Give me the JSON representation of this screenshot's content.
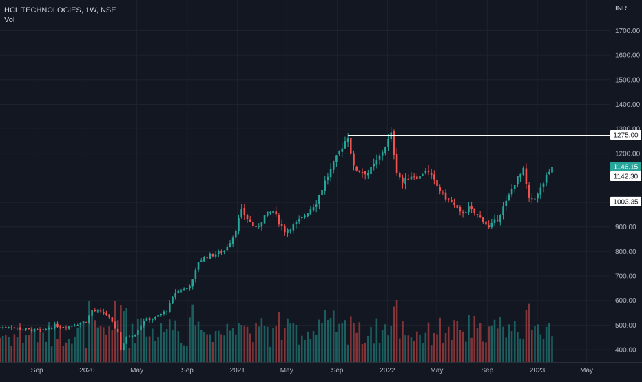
{
  "header": {
    "symbol_line": "HCL TECHNOLOGIES, 1W, NSE",
    "volume_label": "Vol"
  },
  "chart_data": {
    "type": "candlestick",
    "title": "HCL TECHNOLOGIES, 1W, NSE",
    "currency_label": "INR",
    "ylim": [
      380,
      1800
    ],
    "y_ticks": [
      {
        "value": 400,
        "label": "400.00"
      },
      {
        "value": 500,
        "label": "500.00"
      },
      {
        "value": 600,
        "label": "600.00"
      },
      {
        "value": 700,
        "label": "700.00"
      },
      {
        "value": 800,
        "label": "800.00"
      },
      {
        "value": 900,
        "label": "900.00"
      },
      {
        "value": 1000,
        "label": "1000.00"
      },
      {
        "value": 1100,
        "label": "1100.00"
      },
      {
        "value": 1200,
        "label": "1200.00"
      },
      {
        "value": 1300,
        "label": "1300.00"
      },
      {
        "value": 1400,
        "label": "1400.00"
      },
      {
        "value": 1500,
        "label": "1500.00"
      },
      {
        "value": 1600,
        "label": "1600.00"
      },
      {
        "value": 1700,
        "label": "1700.00"
      }
    ],
    "x_ticks": [
      {
        "label": "Sep",
        "date": "2019-09-01"
      },
      {
        "label": "2020",
        "date": "2020-01-01"
      },
      {
        "label": "May",
        "date": "2020-05-01"
      },
      {
        "label": "Sep",
        "date": "2020-09-01"
      },
      {
        "label": "2021",
        "date": "2021-01-01"
      },
      {
        "label": "May",
        "date": "2021-05-01"
      },
      {
        "label": "Sep",
        "date": "2021-09-01"
      },
      {
        "label": "2022",
        "date": "2022-01-01"
      },
      {
        "label": "May",
        "date": "2022-05-01"
      },
      {
        "label": "Sep",
        "date": "2022-09-01"
      },
      {
        "label": "2023",
        "date": "2023-01-01"
      },
      {
        "label": "May",
        "date": "2023-05-01"
      }
    ],
    "x_range": [
      "2019-06-03",
      "2023-06-26"
    ],
    "level_lines": [
      {
        "value": 1275.0,
        "label": "1275.00",
        "from": "2021-09-27"
      },
      {
        "value": 1146.15,
        "label": "1146.15",
        "from": "2022-03-28"
      },
      {
        "value": 1003.35,
        "label": "1003.35",
        "from": "2022-12-12"
      }
    ],
    "price_labels": [
      {
        "value": 1275.0,
        "label": "1275.00",
        "style": "white"
      },
      {
        "value": 1146.15,
        "label": "1146.15",
        "style": "accent"
      },
      {
        "value": 1142.3,
        "label": "1142.30",
        "style": "white"
      },
      {
        "value": 1003.35,
        "label": "1003.35",
        "style": "white"
      }
    ],
    "close_path": [
      [
        "2019-06-03",
        490
      ],
      [
        "2019-06-24",
        495
      ],
      [
        "2019-07-22",
        485
      ],
      [
        "2019-08-19",
        480
      ],
      [
        "2019-09-16",
        478
      ],
      [
        "2019-10-14",
        498
      ],
      [
        "2019-11-11",
        492
      ],
      [
        "2019-12-09",
        505
      ],
      [
        "2019-12-30",
        515
      ],
      [
        "2020-01-13",
        560
      ],
      [
        "2020-02-17",
        545
      ],
      [
        "2020-03-16",
        470
      ],
      [
        "2020-03-23",
        400
      ],
      [
        "2020-04-06",
        450
      ],
      [
        "2020-04-27",
        465
      ],
      [
        "2020-05-18",
        520
      ],
      [
        "2020-06-15",
        530
      ],
      [
        "2020-07-13",
        560
      ],
      [
        "2020-08-03",
        635
      ],
      [
        "2020-08-31",
        650
      ],
      [
        "2020-09-14",
        680
      ],
      [
        "2020-09-28",
        760
      ],
      [
        "2020-10-19",
        780
      ],
      [
        "2020-11-09",
        790
      ],
      [
        "2020-11-30",
        805
      ],
      [
        "2020-12-21",
        860
      ],
      [
        "2021-01-11",
        965
      ],
      [
        "2021-01-25",
        935
      ],
      [
        "2021-02-15",
        890
      ],
      [
        "2021-03-08",
        945
      ],
      [
        "2021-03-29",
        965
      ],
      [
        "2021-04-12",
        920
      ],
      [
        "2021-04-26",
        885
      ],
      [
        "2021-05-17",
        905
      ],
      [
        "2021-06-07",
        935
      ],
      [
        "2021-06-28",
        975
      ],
      [
        "2021-07-12",
        1000
      ],
      [
        "2021-08-02",
        1085
      ],
      [
        "2021-08-23",
        1155
      ],
      [
        "2021-09-13",
        1230
      ],
      [
        "2021-09-27",
        1270
      ],
      [
        "2021-10-11",
        1140
      ],
      [
        "2021-10-25",
        1130
      ],
      [
        "2021-11-15",
        1120
      ],
      [
        "2021-12-06",
        1165
      ],
      [
        "2021-12-27",
        1230
      ],
      [
        "2022-01-10",
        1275
      ],
      [
        "2022-01-24",
        1130
      ],
      [
        "2022-02-07",
        1080
      ],
      [
        "2022-02-28",
        1110
      ],
      [
        "2022-03-21",
        1105
      ],
      [
        "2022-04-04",
        1135
      ],
      [
        "2022-04-25",
        1085
      ],
      [
        "2022-05-16",
        1030
      ],
      [
        "2022-06-06",
        1000
      ],
      [
        "2022-06-27",
        955
      ],
      [
        "2022-07-18",
        975
      ],
      [
        "2022-08-08",
        945
      ],
      [
        "2022-08-22",
        930
      ],
      [
        "2022-09-05",
        895
      ],
      [
        "2022-09-26",
        935
      ],
      [
        "2022-10-17",
        1000
      ],
      [
        "2022-11-07",
        1080
      ],
      [
        "2022-11-28",
        1130
      ],
      [
        "2022-12-12",
        1010
      ],
      [
        "2023-01-02",
        1030
      ],
      [
        "2023-01-16",
        1080
      ],
      [
        "2023-02-06",
        1146.15
      ]
    ]
  }
}
